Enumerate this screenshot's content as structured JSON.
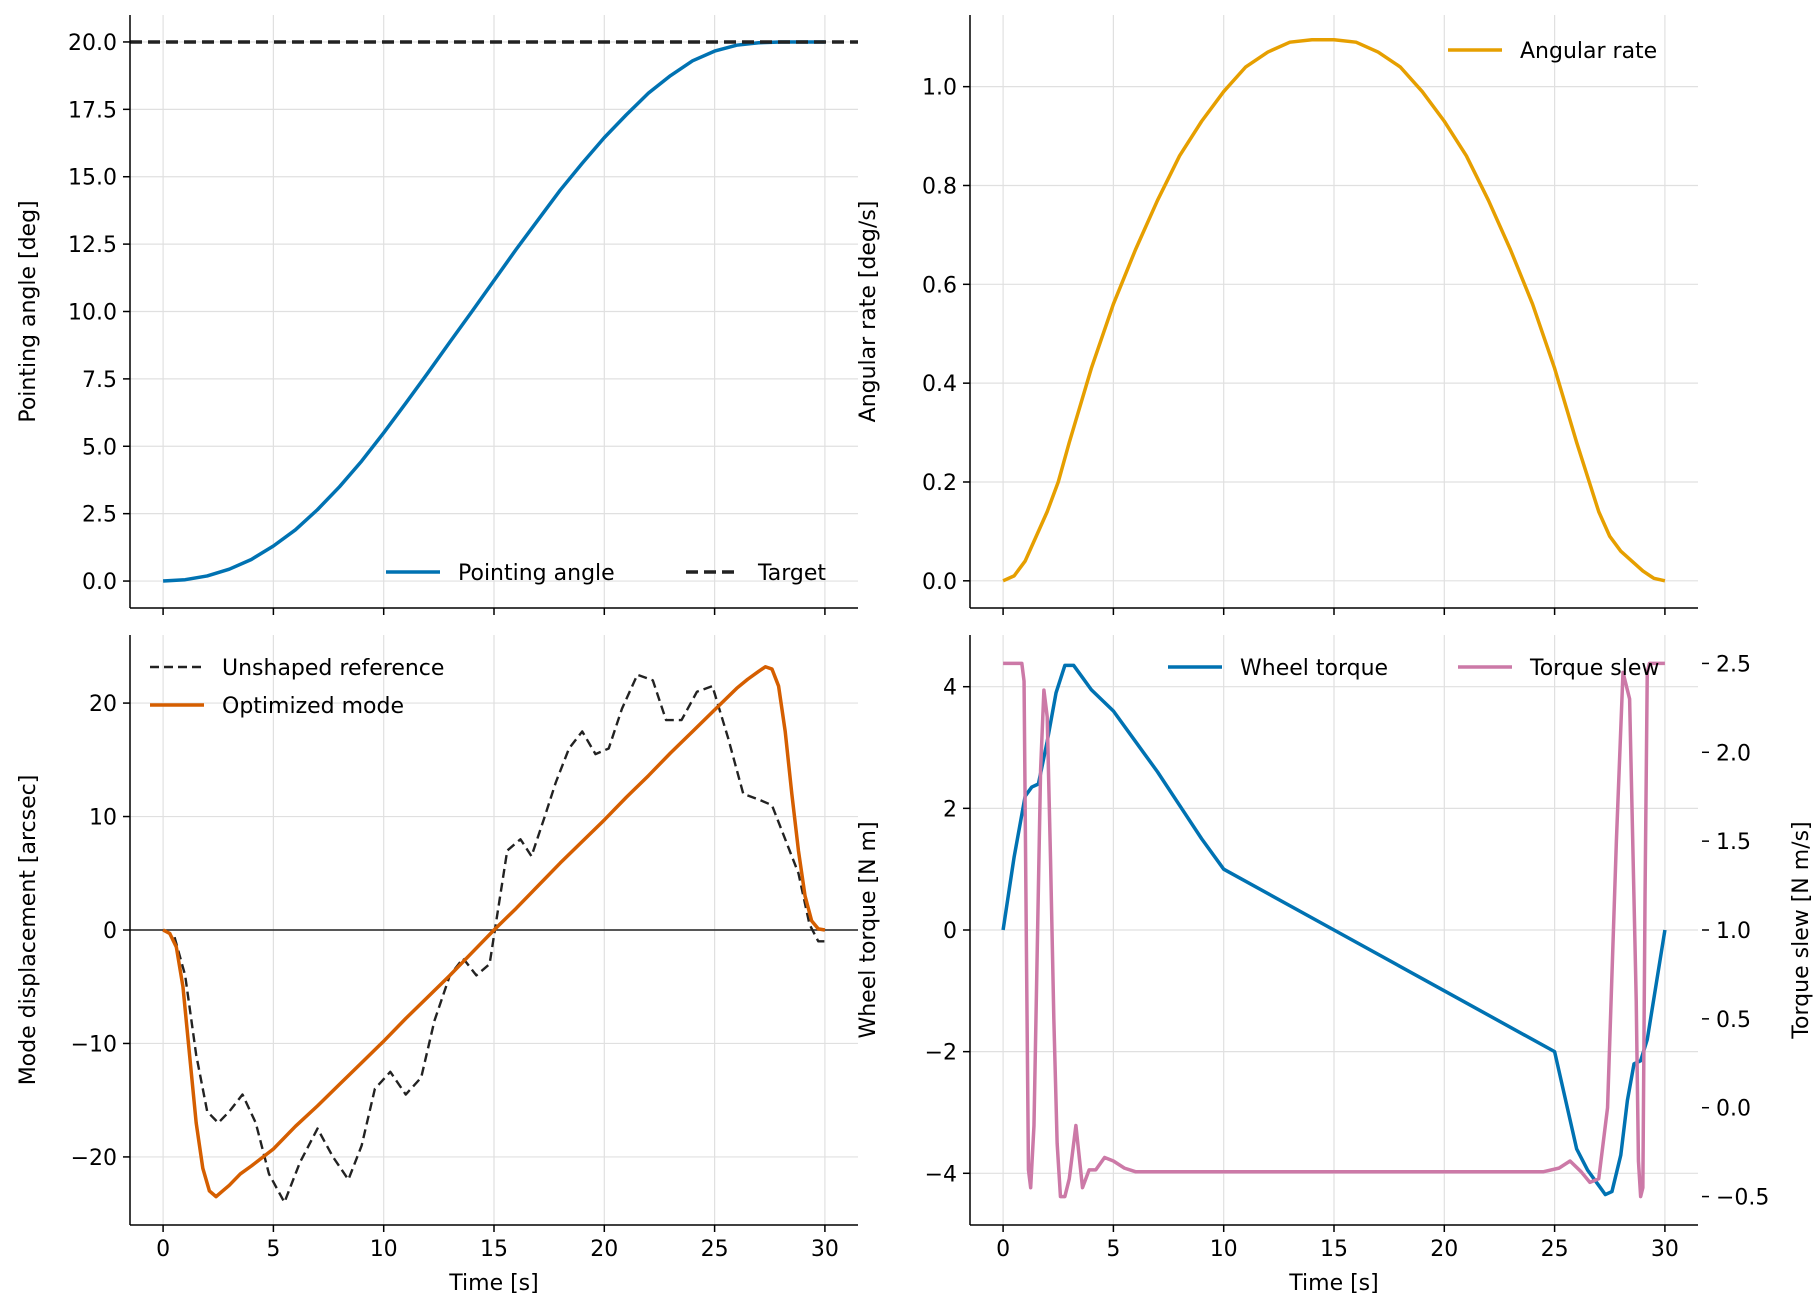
{
  "chart_data": [
    {
      "type": "line",
      "panel": "top-left",
      "title": "",
      "xlabel": "",
      "ylabel": "Pointing angle [deg]",
      "xlim": [
        -1.5,
        31.5
      ],
      "ylim": [
        -1,
        21
      ],
      "xticks": [
        0,
        5,
        10,
        15,
        20,
        25,
        30
      ],
      "xtick_labels": [
        "",
        "",
        "",
        "",
        "",
        "",
        ""
      ],
      "yticks": [
        0,
        2.5,
        5,
        7.5,
        10,
        12.5,
        15,
        17.5,
        20
      ],
      "ytick_labels": [
        "0.0",
        "2.5",
        "5.0",
        "7.5",
        "10.0",
        "12.5",
        "15.0",
        "17.5",
        "20.0"
      ],
      "grid": true,
      "legend": "lower-right",
      "legend_columns": 2,
      "series": [
        {
          "name": "Pointing angle",
          "color": "#0072b2",
          "style": "solid",
          "x": [
            0,
            1,
            2,
            3,
            4,
            5,
            6,
            7,
            8,
            9,
            10,
            11,
            12,
            13,
            14,
            15,
            16,
            17,
            18,
            19,
            20,
            21,
            22,
            23,
            24,
            25,
            26,
            27,
            28,
            29,
            30
          ],
          "y": [
            0.0,
            0.05,
            0.19,
            0.44,
            0.8,
            1.3,
            1.9,
            2.65,
            3.5,
            4.45,
            5.5,
            6.6,
            7.72,
            8.87,
            10.0,
            11.15,
            12.3,
            13.4,
            14.5,
            15.5,
            16.45,
            17.3,
            18.1,
            18.75,
            19.3,
            19.66,
            19.88,
            19.97,
            20.0,
            20.0,
            20.0
          ]
        },
        {
          "name": "Target",
          "color": "#222222",
          "style": "dashed",
          "x": [
            -1.5,
            31.5
          ],
          "y": [
            20.0,
            20.0
          ]
        }
      ]
    },
    {
      "type": "line",
      "panel": "top-right",
      "title": "",
      "xlabel": "",
      "ylabel": "Angular rate [deg/s]",
      "xlim": [
        -1.5,
        31.5
      ],
      "ylim": [
        -0.055,
        1.145
      ],
      "xticks": [
        0,
        5,
        10,
        15,
        20,
        25,
        30
      ],
      "xtick_labels": [
        "",
        "",
        "",
        "",
        "",
        "",
        ""
      ],
      "yticks": [
        0,
        0.2,
        0.4,
        0.6,
        0.8,
        1.0
      ],
      "ytick_labels": [
        "0.0",
        "0.2",
        "0.4",
        "0.6",
        "0.8",
        "1.0"
      ],
      "grid": true,
      "legend": "upper-right",
      "series": [
        {
          "name": "Angular rate",
          "color": "#e69f00",
          "style": "solid",
          "x": [
            0,
            0.5,
            1,
            1.5,
            2,
            2.5,
            3,
            4,
            5,
            6,
            7,
            8,
            9,
            10,
            11,
            12,
            13,
            14,
            15,
            16,
            17,
            18,
            19,
            20,
            21,
            22,
            23,
            24,
            25,
            26,
            27,
            27.5,
            28,
            28.5,
            29,
            29.5,
            30
          ],
          "y": [
            0.0,
            0.01,
            0.04,
            0.09,
            0.14,
            0.2,
            0.28,
            0.43,
            0.56,
            0.67,
            0.77,
            0.86,
            0.93,
            0.99,
            1.04,
            1.07,
            1.09,
            1.095,
            1.095,
            1.09,
            1.07,
            1.04,
            0.99,
            0.93,
            0.86,
            0.77,
            0.67,
            0.56,
            0.43,
            0.28,
            0.14,
            0.09,
            0.06,
            0.04,
            0.02,
            0.005,
            0.0
          ]
        }
      ]
    },
    {
      "type": "line",
      "panel": "bottom-left",
      "title": "",
      "xlabel": "Time [s]",
      "ylabel": "Mode displacement [arcsec]",
      "xlim": [
        -1.5,
        31.5
      ],
      "ylim": [
        -26,
        26
      ],
      "xticks": [
        0,
        5,
        10,
        15,
        20,
        25,
        30
      ],
      "xtick_labels": [
        "0",
        "5",
        "10",
        "15",
        "20",
        "25",
        "30"
      ],
      "yticks": [
        -20,
        -10,
        0,
        10,
        20
      ],
      "ytick_labels": [
        "−20",
        "−10",
        "0",
        "10",
        "20"
      ],
      "grid": true,
      "legend": "upper-left",
      "zero_line": true,
      "series": [
        {
          "name": "Unshaped reference",
          "color": "#222222",
          "style": "dashed",
          "x": [
            0,
            0.5,
            1,
            1.5,
            2,
            2.5,
            3,
            3.6,
            4.2,
            4.8,
            5.5,
            6.2,
            7,
            7.7,
            8.4,
            9,
            9.6,
            10.3,
            11,
            11.7,
            12.3,
            13,
            13.6,
            14.2,
            14.8,
            15.2,
            15.6,
            16.2,
            16.7,
            17.3,
            17.8,
            18.4,
            19,
            19.6,
            20.2,
            20.8,
            21.5,
            22.2,
            22.8,
            23.5,
            24.2,
            24.9,
            25.6,
            26.3,
            27,
            27.6,
            28.2,
            28.8,
            29.3,
            29.7,
            30
          ],
          "y": [
            0,
            -0.5,
            -4,
            -11,
            -16,
            -17,
            -16,
            -14.5,
            -17,
            -21.5,
            -24,
            -20.5,
            -17.5,
            -20,
            -22,
            -19,
            -14,
            -12.5,
            -14.5,
            -13,
            -8,
            -4,
            -2.5,
            -4,
            -3,
            2,
            7,
            8,
            6.5,
            10,
            13,
            16,
            17.5,
            15.5,
            16,
            19.5,
            22.5,
            22,
            18.5,
            18.5,
            21,
            21.5,
            17,
            12,
            11.5,
            11,
            8,
            5,
            0.5,
            -1,
            -1
          ]
        },
        {
          "name": "Optimized mode",
          "color": "#d55e00",
          "style": "solid",
          "x": [
            0,
            0.3,
            0.6,
            0.9,
            1.2,
            1.5,
            1.8,
            2.1,
            2.4,
            2.7,
            3.0,
            3.5,
            4,
            5,
            6,
            7,
            8,
            9,
            10,
            11,
            12,
            13,
            14,
            15,
            16,
            17,
            18,
            19,
            20,
            21,
            22,
            23,
            24,
            25,
            26,
            26.5,
            27,
            27.3,
            27.6,
            27.9,
            28.2,
            28.5,
            28.8,
            29.1,
            29.4,
            29.7,
            30
          ],
          "y": [
            0,
            -0.3,
            -1.5,
            -5,
            -11,
            -17,
            -21,
            -23,
            -23.5,
            -23,
            -22.5,
            -21.5,
            -20.8,
            -19.3,
            -17.3,
            -15.5,
            -13.6,
            -11.7,
            -9.8,
            -7.8,
            -5.9,
            -4,
            -2,
            0,
            1.9,
            3.9,
            5.9,
            7.8,
            9.7,
            11.7,
            13.6,
            15.6,
            17.5,
            19.4,
            21.3,
            22.1,
            22.8,
            23.2,
            23.0,
            21.5,
            17.5,
            12,
            7,
            3,
            0.8,
            0.1,
            0
          ]
        }
      ]
    },
    {
      "type": "line",
      "panel": "bottom-right",
      "title": "",
      "xlabel": "Time [s]",
      "ylabel": "Wheel torque [N m]",
      "y2label": "Torque slew [N m/s]",
      "xlim": [
        -1.5,
        31.5
      ],
      "ylim": [
        -4.85,
        4.85
      ],
      "y2lim": [
        -0.66,
        2.66
      ],
      "xticks": [
        0,
        5,
        10,
        15,
        20,
        25,
        30
      ],
      "xtick_labels": [
        "0",
        "5",
        "10",
        "15",
        "20",
        "25",
        "30"
      ],
      "yticks": [
        -4,
        -2,
        0,
        2,
        4
      ],
      "ytick_labels": [
        "−4",
        "−2",
        "0",
        "2",
        "4"
      ],
      "y2ticks": [
        -0.5,
        0,
        0.5,
        1.0,
        1.5,
        2.0,
        2.5
      ],
      "y2tick_labels": [
        "−0.5",
        "0.0",
        "0.5",
        "1.0",
        "1.5",
        "2.0",
        "2.5"
      ],
      "grid": true,
      "legend": "upper-right",
      "legend_columns": 2,
      "series": [
        {
          "name": "Wheel torque",
          "color": "#0072b2",
          "style": "solid",
          "axis": "left",
          "x": [
            0,
            0.5,
            1,
            1.3,
            1.6,
            2,
            2.4,
            2.8,
            3.2,
            3.6,
            4,
            5,
            6,
            7,
            8,
            9,
            10,
            15,
            20,
            25,
            26,
            26.5,
            27,
            27.3,
            27.6,
            28,
            28.3,
            28.6,
            28.9,
            29.2,
            29.6,
            30
          ],
          "y": [
            0,
            1.2,
            2.2,
            2.35,
            2.4,
            3.1,
            3.9,
            4.35,
            4.35,
            4.15,
            3.95,
            3.6,
            3.1,
            2.6,
            2.05,
            1.5,
            1.0,
            0,
            -1.0,
            -2.0,
            -3.6,
            -3.95,
            -4.2,
            -4.35,
            -4.3,
            -3.7,
            -2.8,
            -2.2,
            -2.15,
            -1.8,
            -0.9,
            0
          ]
        },
        {
          "name": "Torque slew",
          "color": "#cc79a7",
          "style": "solid",
          "axis": "right",
          "x": [
            0,
            0.85,
            0.95,
            1.05,
            1.15,
            1.25,
            1.4,
            1.55,
            1.7,
            1.85,
            2.0,
            2.15,
            2.3,
            2.45,
            2.6,
            2.8,
            3.0,
            3.3,
            3.6,
            3.9,
            4.2,
            4.6,
            5.0,
            5.5,
            6,
            7,
            10,
            15,
            20,
            24.5,
            25.2,
            25.7,
            26.2,
            26.6,
            27.0,
            27.4,
            27.8,
            28.1,
            28.4,
            28.7,
            28.8,
            28.9,
            29.0,
            29.1,
            29.2,
            29.3,
            30
          ],
          "y": [
            2.5,
            2.5,
            2.4,
            1.0,
            -0.35,
            -0.45,
            -0.1,
            0.9,
            1.9,
            2.35,
            2.2,
            1.4,
            0.5,
            -0.2,
            -0.5,
            -0.5,
            -0.4,
            -0.1,
            -0.45,
            -0.35,
            -0.35,
            -0.28,
            -0.3,
            -0.34,
            -0.36,
            -0.36,
            -0.36,
            -0.36,
            -0.36,
            -0.36,
            -0.34,
            -0.3,
            -0.36,
            -0.42,
            -0.4,
            0.0,
            1.5,
            2.45,
            2.3,
            0.6,
            -0.3,
            -0.5,
            -0.45,
            1.2,
            2.45,
            2.5,
            2.5
          ]
        }
      ]
    }
  ]
}
